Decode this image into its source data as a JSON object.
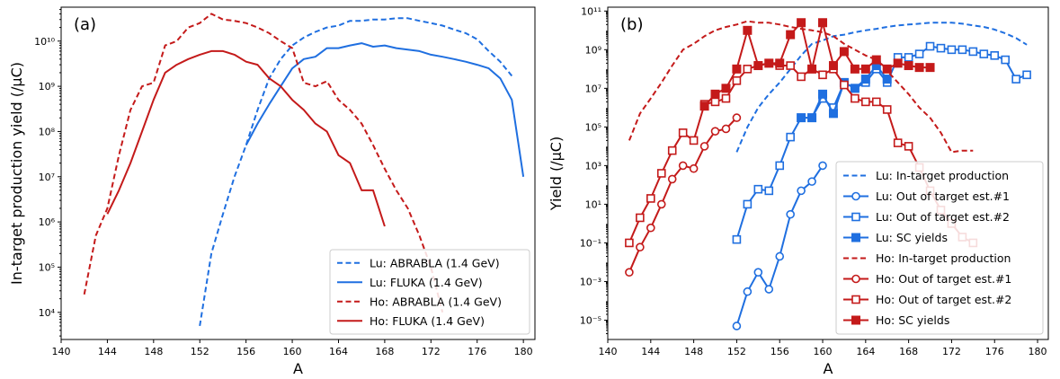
{
  "colors": {
    "lu": "#1f6fe0",
    "ho": "#c41a1a"
  },
  "chart_data": [
    {
      "type": "line",
      "panel_label": "(a)",
      "xlabel": "A",
      "ylabel": "In-target production yield (/μC)",
      "xlim": [
        140,
        181
      ],
      "ylim_log10": [
        3.4,
        10.75
      ],
      "x_ticks": [
        140,
        144,
        148,
        152,
        156,
        160,
        164,
        168,
        172,
        176,
        180
      ],
      "y_tick_exponents": [
        4,
        5,
        6,
        7,
        8,
        9,
        10
      ],
      "legend_position": "lower-right",
      "series": [
        {
          "name": "Lu: ABRABLA (1.4 GeV)",
          "color_key": "lu",
          "style": "dashed",
          "marker": "none",
          "x": [
            152,
            153,
            154,
            155,
            156,
            157,
            158,
            159,
            160,
            161,
            162,
            163,
            164,
            165,
            166,
            167,
            168,
            169,
            170,
            171,
            172,
            173,
            174,
            175,
            176,
            177,
            178,
            179
          ],
          "y": [
            5000.0,
            200000.0,
            1500000.0,
            10000000.0,
            50000000.0,
            300000000.0,
            1500000000.0,
            4000000000.0,
            8000000000.0,
            12000000000.0,
            16000000000.0,
            20000000000.0,
            22000000000.0,
            28000000000.0,
            28000000000.0,
            30000000000.0,
            30000000000.0,
            32000000000.0,
            32000000000.0,
            28000000000.0,
            25000000000.0,
            22000000000.0,
            18000000000.0,
            15000000000.0,
            11000000000.0,
            6000000000.0,
            3500000000.0,
            1700000000.0
          ]
        },
        {
          "name": "Lu: FLUKA (1.4 GeV)",
          "color_key": "lu",
          "style": "solid",
          "marker": "none",
          "x": [
            156,
            157,
            158,
            159,
            160,
            161,
            162,
            163,
            164,
            165,
            166,
            167,
            168,
            169,
            170,
            171,
            172,
            173,
            174,
            175,
            176,
            177,
            178,
            179,
            180
          ],
          "y": [
            50000000.0,
            150000000.0,
            400000000.0,
            1000000000.0,
            2500000000.0,
            4000000000.0,
            4500000000.0,
            7000000000.0,
            7000000000.0,
            8000000000.0,
            9000000000.0,
            7500000000.0,
            8000000000.0,
            7000000000.0,
            6500000000.0,
            6000000000.0,
            5000000000.0,
            4500000000.0,
            4000000000.0,
            3500000000.0,
            3000000000.0,
            2500000000.0,
            1500000000.0,
            500000000.0,
            10000000.0
          ]
        },
        {
          "name": "Ho: ABRABLA (1.4 GeV)",
          "color_key": "ho",
          "style": "dashed",
          "marker": "none",
          "x": [
            142,
            143,
            144,
            145,
            146,
            147,
            148,
            149,
            150,
            151,
            152,
            153,
            154,
            155,
            156,
            157,
            158,
            159,
            160,
            161,
            162,
            163,
            164,
            165,
            166,
            167,
            168,
            169,
            170,
            171,
            172,
            173
          ],
          "y": [
            25000.0,
            500000.0,
            2000000.0,
            30000000.0,
            300000000.0,
            1000000000.0,
            1200000000.0,
            8000000000.0,
            10000000000.0,
            20000000000.0,
            25000000000.0,
            40000000000.0,
            30000000000.0,
            28000000000.0,
            25000000000.0,
            20000000000.0,
            15000000000.0,
            10000000000.0,
            7000000000.0,
            1200000000.0,
            1000000000.0,
            1300000000.0,
            500000000.0,
            300000000.0,
            150000000.0,
            50000000.0,
            15000000.0,
            5000000.0,
            2000000.0,
            500000.0,
            100000.0,
            10000.0
          ]
        },
        {
          "name": "Ho: FLUKA (1.4 GeV)",
          "color_key": "ho",
          "style": "solid",
          "marker": "none",
          "x": [
            144,
            145,
            146,
            147,
            148,
            149,
            150,
            151,
            152,
            153,
            154,
            155,
            156,
            157,
            158,
            159,
            160,
            161,
            162,
            163,
            164,
            165,
            166,
            167,
            168
          ],
          "y": [
            1500000.0,
            5000000.0,
            20000000.0,
            100000000.0,
            500000000.0,
            2000000000.0,
            3000000000.0,
            4000000000.0,
            5000000000.0,
            6000000000.0,
            6000000000.0,
            5000000000.0,
            3500000000.0,
            3000000000.0,
            1500000000.0,
            1000000000.0,
            500000000.0,
            300000000.0,
            150000000.0,
            100000000.0,
            30000000.0,
            20000000.0,
            5000000.0,
            5000000.0,
            800000.0
          ]
        }
      ]
    },
    {
      "type": "line",
      "panel_label": "(b)",
      "xlabel": "A",
      "ylabel": "Yield (/μC)",
      "xlim": [
        140,
        181
      ],
      "ylim_log10": [
        -6.0,
        11.2
      ],
      "x_ticks": [
        140,
        144,
        148,
        152,
        156,
        160,
        164,
        168,
        172,
        176,
        180
      ],
      "y_tick_exponents": [
        -5,
        -3,
        -1,
        1,
        3,
        5,
        7,
        9,
        11
      ],
      "legend_position": "lower-right",
      "series": [
        {
          "name": "Lu: In-target production",
          "color_key": "lu",
          "style": "dashed",
          "marker": "none",
          "x": [
            152,
            153,
            154,
            155,
            156,
            157,
            158,
            159,
            160,
            161,
            162,
            163,
            164,
            165,
            166,
            167,
            168,
            169,
            170,
            171,
            172,
            173,
            174,
            175,
            176,
            177,
            178,
            179
          ],
          "y": [
            5000.0,
            100000.0,
            1000000.0,
            5000000.0,
            20000000.0,
            100000000.0,
            500000000.0,
            2000000000.0,
            3000000000.0,
            5000000000.0,
            6000000000.0,
            8000000000.0,
            10000000000.0,
            12000000000.0,
            15000000000.0,
            18000000000.0,
            20000000000.0,
            22000000000.0,
            25000000000.0,
            25000000000.0,
            25000000000.0,
            22000000000.0,
            18000000000.0,
            15000000000.0,
            11000000000.0,
            7000000000.0,
            4000000000.0,
            1800000000.0
          ]
        },
        {
          "name": "Lu: Out of target est.#1",
          "color_key": "lu",
          "style": "solid",
          "marker": "circle-open",
          "x": [
            152,
            153,
            154,
            155,
            156,
            157,
            158,
            159,
            160
          ],
          "y": [
            5e-06,
            0.0003,
            0.003,
            0.0004,
            0.02,
            3,
            50,
            150,
            1000
          ]
        },
        {
          "name": "Lu: Out of target est.#2",
          "color_key": "lu",
          "style": "solid",
          "marker": "square-open",
          "x": [
            152,
            153,
            154,
            155,
            156,
            157,
            158,
            159,
            160,
            161,
            162,
            163,
            164,
            165,
            166,
            167,
            168,
            169,
            170,
            171,
            172,
            173,
            174,
            175,
            176,
            177,
            178,
            179
          ],
          "y": [
            0.15,
            10,
            60,
            50,
            1000,
            30000.0,
            300000.0,
            300000.0,
            3000000.0,
            1000000.0,
            20000000.0,
            10000000.0,
            20000000.0,
            100000000.0,
            20000000.0,
            400000000.0,
            400000000.0,
            600000000.0,
            1500000000.0,
            1200000000.0,
            1000000000.0,
            1000000000.0,
            800000000.0,
            600000000.0,
            500000000.0,
            300000000.0,
            30000000.0,
            50000000.0
          ]
        },
        {
          "name": "Lu: SC yields",
          "color_key": "lu",
          "style": "solid",
          "marker": "square-filled",
          "x": [
            158,
            159,
            160,
            161,
            162,
            163,
            164,
            165,
            166
          ],
          "y": [
            300000.0,
            300000.0,
            5000000.0,
            500000.0,
            20000000.0,
            10000000.0,
            30000000.0,
            150000000.0,
            30000000.0
          ]
        },
        {
          "name": "Ho: In-target production",
          "color_key": "ho",
          "style": "dashed",
          "marker": "none",
          "x": [
            142,
            143,
            144,
            145,
            146,
            147,
            148,
            149,
            150,
            151,
            152,
            153,
            154,
            155,
            156,
            157,
            158,
            159,
            160,
            161,
            162,
            163,
            164,
            165,
            166,
            167,
            168,
            169,
            170,
            171,
            172,
            173,
            174
          ],
          "y": [
            20000.0,
            500000.0,
            3000000.0,
            20000000.0,
            150000000.0,
            1000000000.0,
            2000000000.0,
            5000000000.0,
            10000000000.0,
            15000000000.0,
            20000000000.0,
            30000000000.0,
            25000000000.0,
            25000000000.0,
            20000000000.0,
            15000000000.0,
            12000000000.0,
            10000000000.0,
            8000000000.0,
            5000000000.0,
            2000000000.0,
            1000000000.0,
            500000000.0,
            300000000.0,
            80000000.0,
            20000000.0,
            5000000.0,
            1000000.0,
            300000.0,
            50000.0,
            5000.0,
            6000.0,
            6000.0
          ]
        },
        {
          "name": "Ho: Out of target est.#1",
          "color_key": "ho",
          "style": "solid",
          "marker": "circle-open",
          "x": [
            142,
            143,
            144,
            145,
            146,
            147,
            148,
            149,
            150,
            151,
            152
          ],
          "y": [
            0.003,
            0.06,
            0.6,
            10,
            200,
            1000,
            700,
            10000.0,
            60000.0,
            80000.0,
            300000.0
          ]
        },
        {
          "name": "Ho: Out of target est.#2",
          "color_key": "ho",
          "style": "solid",
          "marker": "square-open",
          "x": [
            142,
            143,
            144,
            145,
            146,
            147,
            148,
            149,
            150,
            151,
            152,
            153,
            154,
            155,
            156,
            157,
            158,
            159,
            160,
            161,
            162,
            163,
            164,
            165,
            166,
            167,
            168,
            169,
            170,
            171,
            172,
            173,
            174
          ],
          "y": [
            0.1,
            2,
            20,
            400,
            6000.0,
            50000.0,
            20000.0,
            1500000.0,
            2000000.0,
            3000000.0,
            25000000.0,
            100000000.0,
            150000000.0,
            200000000.0,
            150000000.0,
            150000000.0,
            40000000.0,
            100000000.0,
            50000000.0,
            100000000.0,
            15000000.0,
            3000000.0,
            2000000.0,
            2000000.0,
            800000.0,
            15000.0,
            10000.0,
            800,
            50,
            5,
            1,
            0.2,
            0.1
          ]
        },
        {
          "name": "Ho: SC yields",
          "color_key": "ho",
          "style": "solid",
          "marker": "square-filled",
          "x": [
            149,
            150,
            151,
            152,
            153,
            154,
            155,
            156,
            157,
            158,
            159,
            160,
            161,
            162,
            163,
            164,
            165,
            166,
            167,
            168,
            169,
            170
          ],
          "y": [
            1200000.0,
            5000000.0,
            10000000.0,
            100000000.0,
            10000000000.0,
            150000000.0,
            200000000.0,
            200000000.0,
            6000000000.0,
            25000000000.0,
            100000000.0,
            25000000000.0,
            150000000.0,
            800000000.0,
            100000000.0,
            100000000.0,
            300000000.0,
            100000000.0,
            200000000.0,
            150000000.0,
            120000000.0,
            120000000.0
          ]
        }
      ]
    }
  ]
}
